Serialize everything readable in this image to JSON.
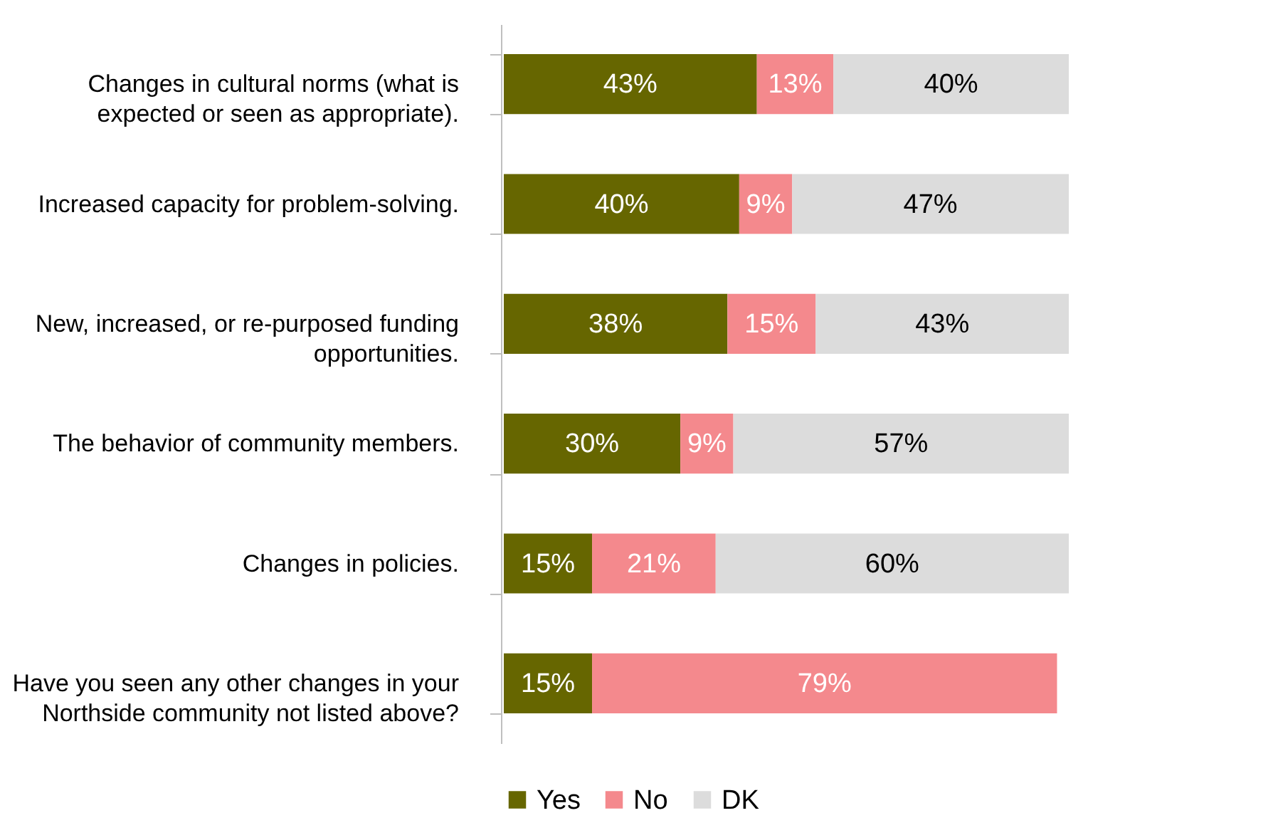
{
  "chart_data": {
    "type": "bar",
    "orientation": "horizontal",
    "stacked": true,
    "xlim": [
      0,
      96
    ],
    "tick_labels": "y",
    "legend": "bottom",
    "categories": [
      "Changes in cultural norms (what is expected or seen as appropriate).",
      "Increased capacity for problem-solving.",
      "New, increased, or re-purposed funding opportunities.",
      "The behavior of community members.",
      "Changes in policies.",
      "Have you seen any other changes in your Northside community not listed above?"
    ],
    "series": [
      {
        "name": "Yes",
        "color": "#666600",
        "values": [
          43,
          40,
          38,
          30,
          15,
          15
        ],
        "value_labels": [
          "43%",
          "40%",
          "38%",
          "30%",
          "15%",
          "15%"
        ]
      },
      {
        "name": "No",
        "color": "#f4898d",
        "values": [
          13,
          9,
          15,
          9,
          21,
          79
        ],
        "value_labels": [
          "13%",
          "9%",
          "15%",
          "9%",
          "21%",
          "79%"
        ]
      },
      {
        "name": "DK",
        "color": "#dcdcdc",
        "values": [
          40,
          47,
          43,
          57,
          60,
          null
        ],
        "value_labels": [
          "40%",
          "47%",
          "43%",
          "57%",
          "60%",
          null
        ]
      }
    ]
  }
}
